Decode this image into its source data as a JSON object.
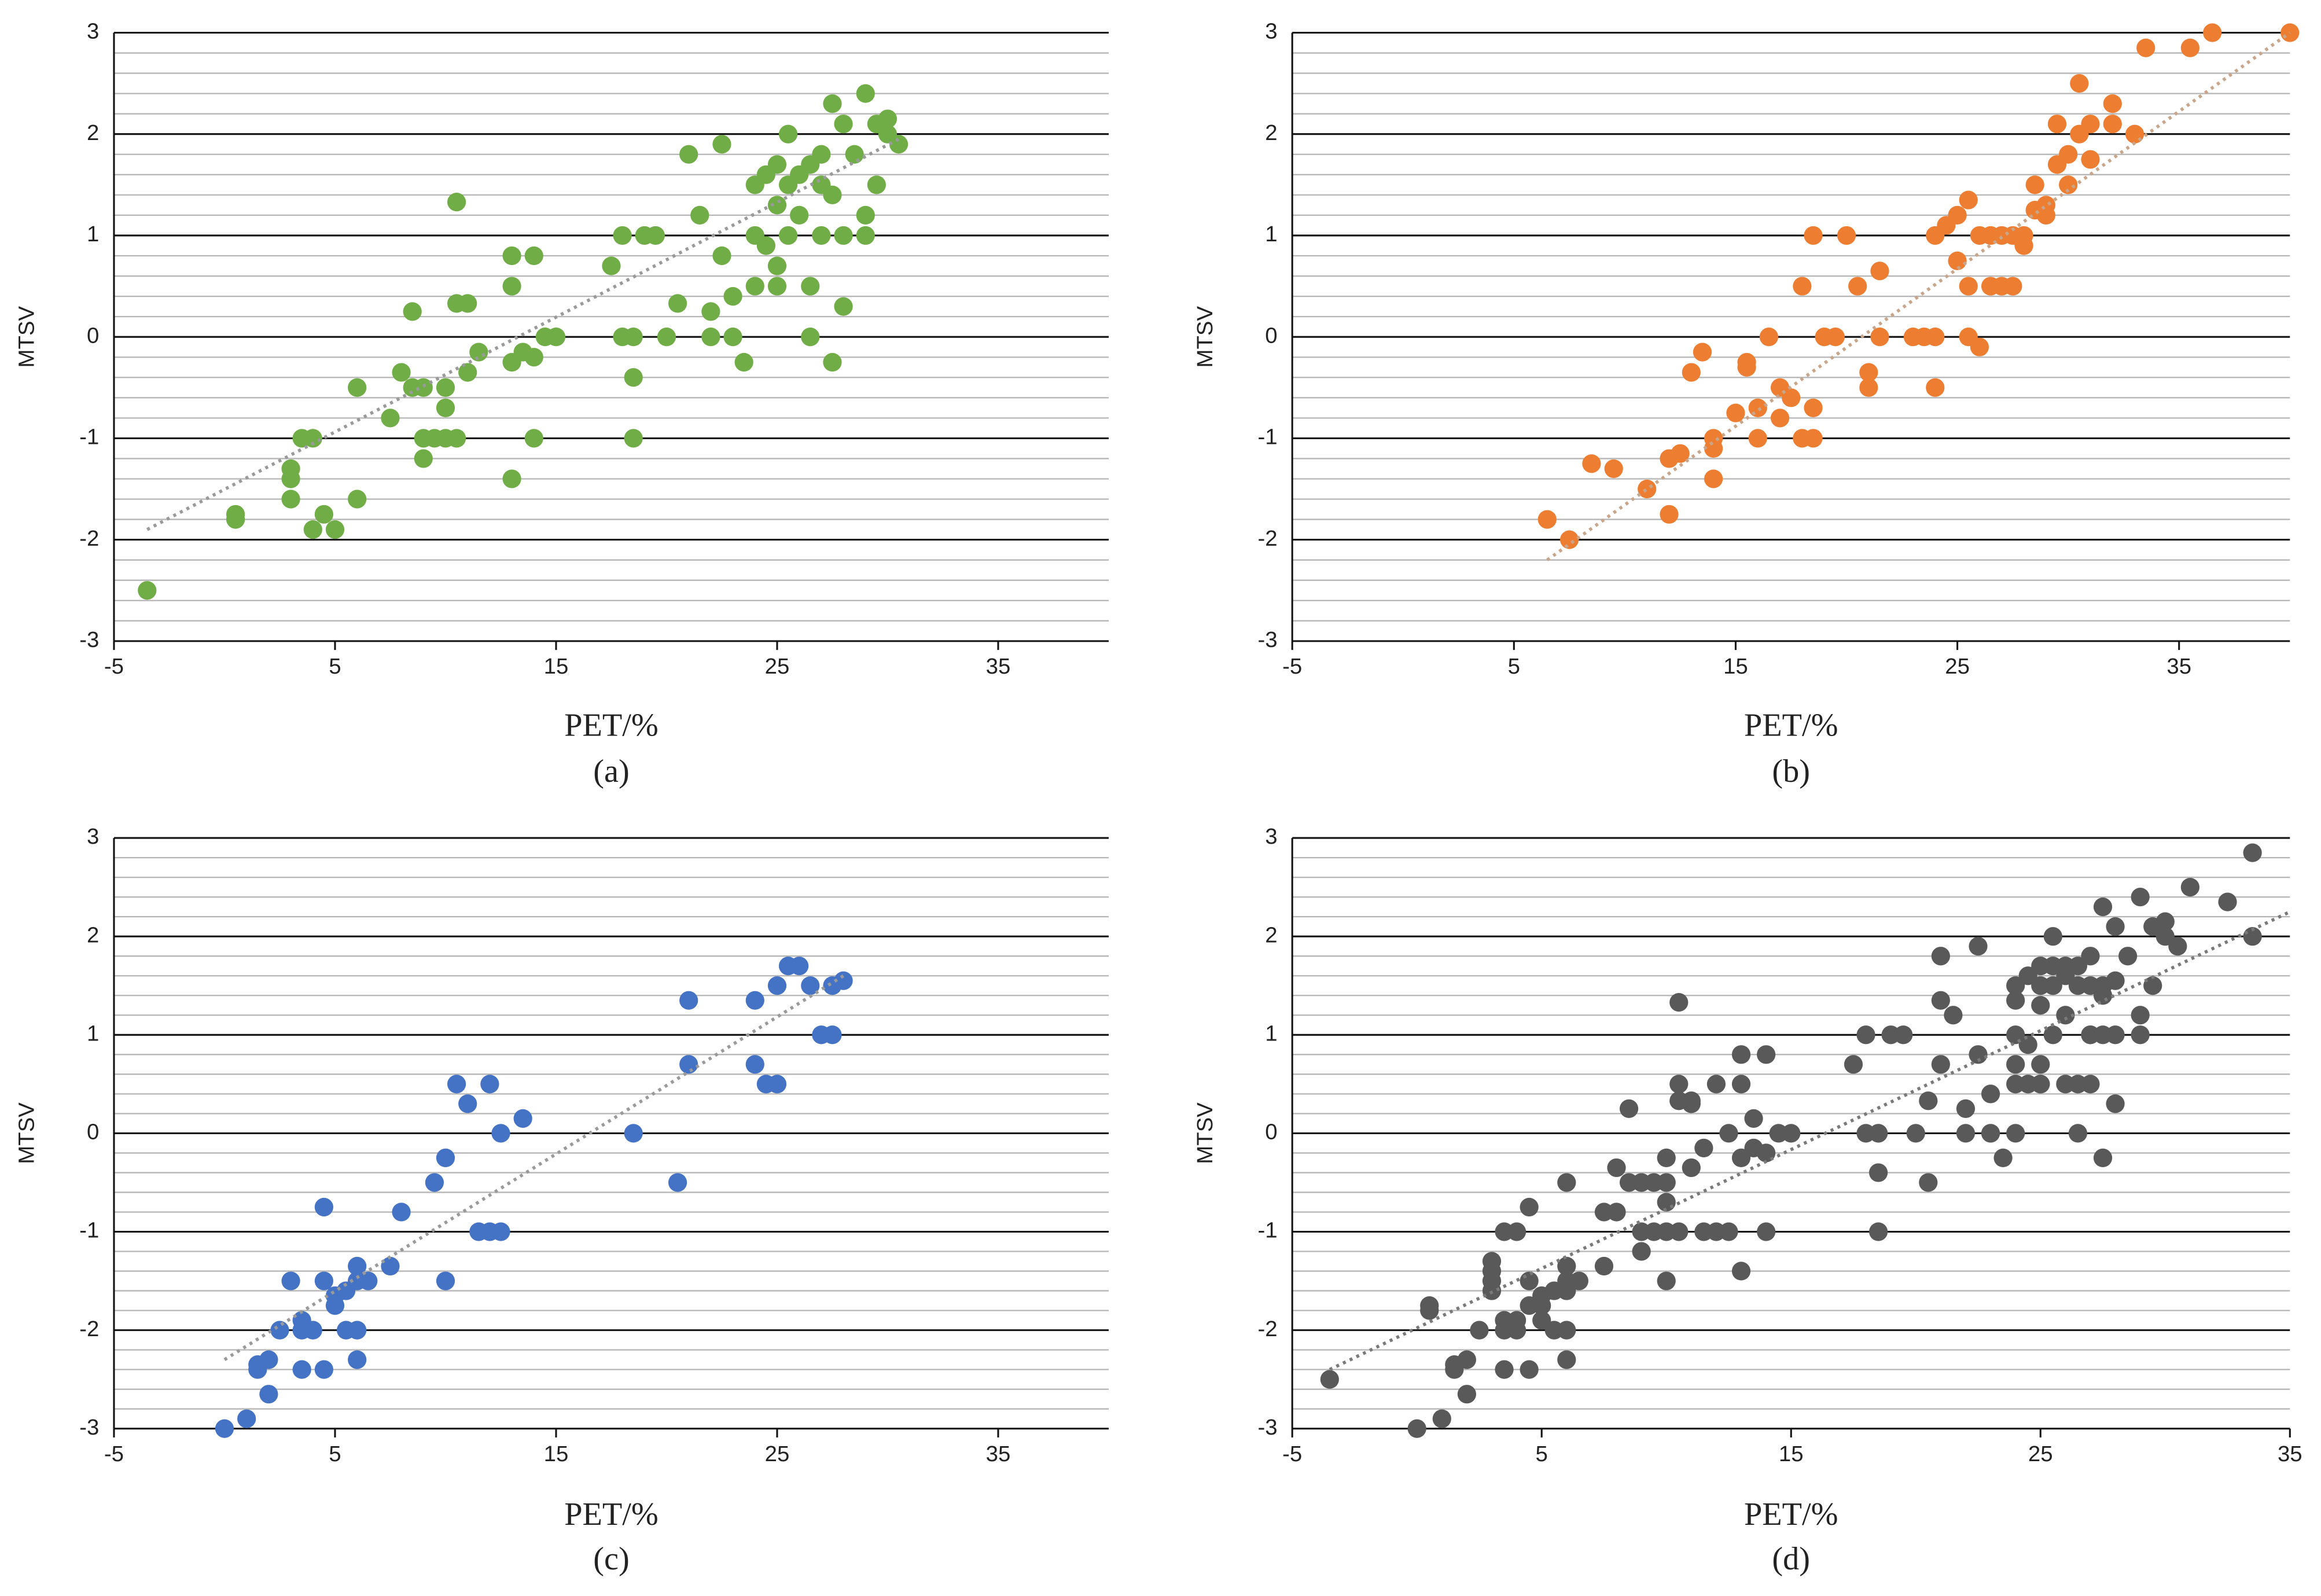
{
  "chart_data": [
    {
      "type": "scatter",
      "caption": "(a)",
      "xlabel": "PET/%",
      "ylabel": "MTSV",
      "color": "#70ad47",
      "xlim": [
        -5,
        40
      ],
      "ylim": [
        -3,
        3
      ],
      "xticks": [
        -5,
        5,
        15,
        25,
        35
      ],
      "yticks": [
        -3,
        -2,
        -1,
        0,
        1,
        2,
        3
      ],
      "minor_yticks": [
        -2.8,
        -2.6,
        -2.4,
        -2.2,
        -1.8,
        -1.6,
        -1.4,
        -1.2,
        -0.8,
        -0.6,
        -0.4,
        -0.2,
        0.2,
        0.4,
        0.6,
        0.8,
        1.2,
        1.4,
        1.6,
        1.8,
        2.2,
        2.4,
        2.6,
        2.8
      ],
      "trendline": {
        "x": [
          -3.5,
          30.5
        ],
        "y": [
          -1.9,
          1.95
        ],
        "color": "#9a9a9a"
      },
      "x": [
        -3.5,
        0.5,
        0.5,
        3,
        3,
        3,
        3.5,
        4,
        4,
        4.5,
        5,
        6,
        6,
        7.5,
        8,
        8.5,
        8.5,
        9,
        9,
        9,
        9.5,
        10,
        10,
        10,
        10.5,
        10.5,
        10.5,
        11,
        11,
        11.5,
        13,
        13,
        13,
        13,
        13.5,
        14,
        14,
        14,
        14.5,
        15,
        17.5,
        18,
        18,
        18.5,
        18.5,
        18.5,
        19,
        19.5,
        20,
        20.5,
        21,
        21.5,
        22,
        22,
        22.5,
        22.5,
        23,
        23,
        23.5,
        24,
        24,
        24,
        24.5,
        24.5,
        25,
        25,
        25,
        25,
        25.5,
        25.5,
        25.5,
        26,
        26,
        26.5,
        26.5,
        26.5,
        27,
        27,
        27,
        27.5,
        27.5,
        27.5,
        28,
        28,
        28,
        28.5,
        29,
        29,
        29,
        29.5,
        29.5,
        30,
        30,
        30.5
      ],
      "values": [
        -2.5,
        -1.8,
        -1.75,
        -1.3,
        -1.4,
        -1.6,
        -1,
        -1,
        -1.9,
        -1.75,
        -1.9,
        -1.6,
        -0.5,
        -0.8,
        -0.35,
        -0.5,
        0.25,
        -0.5,
        -1,
        -1.2,
        -1,
        -0.5,
        -0.7,
        -1,
        -1,
        1.33,
        0.33,
        0.33,
        -0.35,
        -0.15,
        -0.25,
        -1.4,
        0.5,
        0.8,
        -0.15,
        0.8,
        -0.2,
        -1,
        0,
        0,
        0.7,
        1,
        0,
        0,
        -0.4,
        -1,
        1,
        1,
        0,
        0.33,
        1.8,
        1.2,
        0,
        0.25,
        1.9,
        0.8,
        0,
        0.4,
        -0.25,
        0.5,
        1,
        1.5,
        0.9,
        1.6,
        1.7,
        1.3,
        0.7,
        0.5,
        2,
        1.5,
        1,
        1.6,
        1.2,
        0.5,
        1.7,
        0,
        1.5,
        1.8,
        1,
        2.3,
        -0.25,
        1.4,
        2.1,
        0.3,
        1,
        1.8,
        1,
        1.2,
        2.4,
        2.1,
        1.5,
        2,
        2.15,
        1.9
      ]
    },
    {
      "type": "scatter",
      "caption": "(b)",
      "xlabel": "PET/%",
      "ylabel": "MTSV",
      "color": "#ed7d31",
      "xlim": [
        -5,
        40
      ],
      "ylim": [
        -3,
        3
      ],
      "xticks": [
        -5,
        5,
        15,
        25,
        35
      ],
      "yticks": [
        -3,
        -2,
        -1,
        0,
        1,
        2,
        3
      ],
      "minor_yticks": [
        -2.8,
        -2.6,
        -2.4,
        -2.2,
        -1.8,
        -1.6,
        -1.4,
        -1.2,
        -0.8,
        -0.6,
        -0.4,
        -0.2,
        0.2,
        0.4,
        0.6,
        0.8,
        1.2,
        1.4,
        1.6,
        1.8,
        2.2,
        2.4,
        2.6,
        2.8
      ],
      "trendline": {
        "x": [
          6.5,
          40
        ],
        "y": [
          -2.2,
          3
        ],
        "color": "#c9a58a"
      },
      "x": [
        6.5,
        7.5,
        8.5,
        9.5,
        11,
        12,
        12,
        12.5,
        13,
        13.5,
        14,
        14,
        14,
        15,
        15.5,
        15.5,
        16,
        16,
        16.5,
        17,
        17,
        17.5,
        18,
        18,
        18.5,
        18.5,
        18.5,
        19,
        19.5,
        20,
        20.5,
        21,
        21,
        21.5,
        21.5,
        23,
        23.5,
        24,
        24,
        24,
        24.5,
        25,
        25,
        25.5,
        25.5,
        25.5,
        26,
        26,
        26.5,
        26.5,
        27,
        27,
        27.5,
        27.5,
        28,
        28,
        28.5,
        28.5,
        29,
        29,
        29.5,
        29.5,
        30,
        30,
        30.5,
        30.5,
        31,
        31,
        32,
        32,
        33,
        33.5,
        35.5,
        36.5,
        40
      ],
      "values": [
        -1.8,
        -2,
        -1.25,
        -1.3,
        -1.5,
        -1.75,
        -1.2,
        -1.15,
        -0.35,
        -0.15,
        -1.4,
        -1,
        -1.1,
        -0.75,
        -0.3,
        -0.25,
        -0.7,
        -1,
        0,
        -0.5,
        -0.8,
        -0.6,
        0.5,
        -1,
        1,
        -0.7,
        -1,
        0,
        0,
        1,
        0.5,
        -0.35,
        -0.5,
        0.65,
        0,
        0,
        0,
        0,
        -0.5,
        1,
        1.1,
        1.2,
        0.75,
        1.35,
        0.5,
        0,
        -0.1,
        1,
        1,
        0.5,
        1,
        0.5,
        0.5,
        1,
        0.9,
        1,
        1.25,
        1.5,
        1.2,
        1.3,
        1.7,
        2.1,
        1.8,
        1.5,
        2,
        2.5,
        2.1,
        1.75,
        2.3,
        2.1,
        2,
        2.85,
        2.85,
        3,
        3
      ]
    },
    {
      "type": "scatter",
      "caption": "(c)",
      "xlabel": "PET/%",
      "ylabel": "MTSV",
      "color": "#4472c4",
      "xlim": [
        -5,
        40
      ],
      "ylim": [
        -3,
        3
      ],
      "xticks": [
        -5,
        5,
        15,
        25,
        35
      ],
      "yticks": [
        -3,
        -2,
        -1,
        0,
        1,
        2,
        3
      ],
      "minor_yticks": [
        -2.8,
        -2.6,
        -2.4,
        -2.2,
        -1.8,
        -1.6,
        -1.4,
        -1.2,
        -0.8,
        -0.6,
        -0.4,
        -0.2,
        0.2,
        0.4,
        0.6,
        0.8,
        1.2,
        1.4,
        1.6,
        1.8,
        2.2,
        2.4,
        2.6,
        2.8
      ],
      "trendline": {
        "x": [
          0,
          28
        ],
        "y": [
          -2.3,
          1.6
        ],
        "color": "#9a9a9a"
      },
      "x": [
        0,
        1,
        1.5,
        1.5,
        2,
        2,
        2.5,
        3,
        3.5,
        3.5,
        3.5,
        4,
        4.5,
        4.5,
        4.5,
        5,
        5,
        5.5,
        5.5,
        6,
        6,
        6,
        6,
        6.5,
        7.5,
        8,
        9.5,
        10,
        10,
        10.5,
        11,
        11.5,
        12,
        12,
        12.5,
        12.5,
        13.5,
        18.5,
        20.5,
        21,
        21,
        24,
        24,
        24.5,
        25,
        25,
        25.5,
        26,
        26.5,
        27,
        27.5,
        27.5,
        28
      ],
      "values": [
        -3,
        -2.9,
        -2.4,
        -2.35,
        -2.65,
        -2.3,
        -2,
        -1.5,
        -2,
        -1.9,
        -2.4,
        -2,
        -1.5,
        -2.4,
        -0.75,
        -1.65,
        -1.75,
        -1.6,
        -2,
        -1.5,
        -2,
        -1.35,
        -2.3,
        -1.5,
        -1.35,
        -0.8,
        -0.5,
        -0.25,
        -1.5,
        0.5,
        0.3,
        -1,
        -1,
        0.5,
        0,
        -1,
        0.15,
        0,
        -0.5,
        0.7,
        1.35,
        1.35,
        0.7,
        0.5,
        0.5,
        1.5,
        1.7,
        1.7,
        1.5,
        1,
        1,
        1.5,
        1.55
      ]
    },
    {
      "type": "scatter",
      "caption": "(d)",
      "xlabel": "PET/%",
      "ylabel": "MTSV",
      "color": "#595959",
      "xlim": [
        -5,
        35
      ],
      "ylim": [
        -3,
        3
      ],
      "xticks": [
        -5,
        5,
        15,
        25,
        35
      ],
      "yticks": [
        -3,
        -2,
        -1,
        0,
        1,
        2,
        3
      ],
      "minor_yticks": [
        -2.8,
        -2.6,
        -2.4,
        -2.2,
        -1.8,
        -1.6,
        -1.4,
        -1.2,
        -0.8,
        -0.6,
        -0.4,
        -0.2,
        0.2,
        0.4,
        0.6,
        0.8,
        1.2,
        1.4,
        1.6,
        1.8,
        2.2,
        2.4,
        2.6,
        2.8
      ],
      "trendline": {
        "x": [
          -3.5,
          35
        ],
        "y": [
          -2.4,
          2.25
        ],
        "color": "#7a7a7a"
      },
      "x": [
        -3.5,
        0.5,
        0.5,
        3,
        3,
        3,
        3.5,
        4,
        4,
        4.5,
        5,
        6,
        6,
        7.5,
        8,
        8.5,
        8.5,
        9,
        9,
        9,
        9.5,
        10,
        10,
        10,
        10.5,
        10.5,
        10.5,
        11,
        11,
        11.5,
        13,
        13,
        13,
        13,
        13.5,
        14,
        14,
        14,
        14.5,
        15,
        17.5,
        18,
        18,
        18.5,
        18.5,
        18.5,
        19,
        19.5,
        20,
        20.5,
        21,
        21.5,
        22,
        22,
        22.5,
        22.5,
        23,
        23,
        23.5,
        24,
        24,
        24,
        24.5,
        24.5,
        25,
        25,
        25,
        25,
        25.5,
        25.5,
        25.5,
        26,
        26,
        26.5,
        26.5,
        26.5,
        27,
        27,
        27,
        27.5,
        27.5,
        27.5,
        28,
        28,
        28,
        28.5,
        29,
        29,
        29,
        29.5,
        29.5,
        30,
        30,
        30.5,
        0,
        1,
        1.5,
        1.5,
        2,
        2,
        2.5,
        3,
        3.5,
        3.5,
        3.5,
        4,
        4.5,
        4.5,
        4.5,
        5,
        5,
        5.5,
        5.5,
        6,
        6,
        6,
        6,
        6.5,
        7.5,
        8,
        9.5,
        10,
        10,
        10.5,
        11,
        11.5,
        12,
        12,
        12.5,
        12.5,
        13.5,
        18.5,
        20.5,
        21,
        21,
        24,
        24,
        24.5,
        25,
        25,
        25.5,
        26,
        26.5,
        27,
        27.5,
        27.5,
        28,
        33.5,
        31,
        32.5,
        33.5,
        25,
        26,
        27,
        24,
        23
      ],
      "values": [
        -2.5,
        -1.8,
        -1.75,
        -1.3,
        -1.4,
        -1.6,
        -1,
        -1,
        -1.9,
        -1.75,
        -1.9,
        -1.6,
        -0.5,
        -0.8,
        -0.35,
        -0.5,
        0.25,
        -0.5,
        -1,
        -1.2,
        -1,
        -0.5,
        -0.7,
        -1,
        -1,
        1.33,
        0.33,
        0.33,
        -0.35,
        -0.15,
        -0.25,
        -1.4,
        0.5,
        0.8,
        -0.15,
        0.8,
        -0.2,
        -1,
        0,
        0,
        0.7,
        1,
        0,
        0,
        -0.4,
        -1,
        1,
        1,
        0,
        0.33,
        1.8,
        1.2,
        0,
        0.25,
        1.9,
        0.8,
        0,
        0.4,
        -0.25,
        0.5,
        1,
        1.5,
        0.9,
        1.6,
        1.7,
        1.3,
        0.7,
        0.5,
        2,
        1.5,
        1,
        1.6,
        1.2,
        0.5,
        1.7,
        0,
        1.5,
        1.8,
        1,
        2.3,
        -0.25,
        1.4,
        2.1,
        0.3,
        1,
        1.8,
        1,
        1.2,
        2.4,
        2.1,
        1.5,
        2,
        2.15,
        1.9,
        -3,
        -2.9,
        -2.4,
        -2.35,
        -2.65,
        -2.3,
        -2,
        -1.5,
        -2,
        -1.9,
        -2.4,
        -2,
        -1.5,
        -2.4,
        -0.75,
        -1.65,
        -1.75,
        -1.6,
        -2,
        -1.5,
        -2,
        -1.35,
        -2.3,
        -1.5,
        -1.35,
        -0.8,
        -0.5,
        -0.25,
        -1.5,
        0.5,
        0.3,
        -1,
        -1,
        0.5,
        0,
        -1,
        0.15,
        0,
        -0.5,
        0.7,
        1.35,
        1.35,
        0.7,
        0.5,
        0.5,
        1.5,
        1.7,
        1.7,
        1.5,
        1,
        1,
        1.5,
        1.55,
        2.85,
        2.5,
        2.35,
        2,
        0.5,
        0.5,
        0.5,
        0,
        0
      ]
    }
  ]
}
